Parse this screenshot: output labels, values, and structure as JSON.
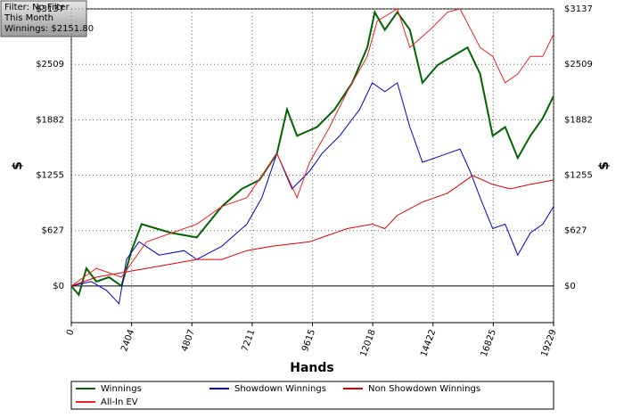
{
  "chart_data": {
    "type": "line",
    "info": [
      "Filter: No Filter",
      "This Month",
      "Winnings: $2151.80"
    ],
    "xlabel": "Hands",
    "ylabel": "$",
    "y2label": "$",
    "xlim": [
      0,
      19229
    ],
    "xticks": [
      0,
      2404,
      4807,
      7211,
      9615,
      12018,
      14422,
      16825,
      19229
    ],
    "ylim": [
      -415,
      3137
    ],
    "yticks": [
      {
        "value": 0,
        "label": "$0"
      },
      {
        "value": 627,
        "label": "$627"
      },
      {
        "value": 1255,
        "label": "$1255"
      },
      {
        "value": 1882,
        "label": "$1882"
      },
      {
        "value": 2509,
        "label": "$2509"
      },
      {
        "value": 3137,
        "label": "$3137"
      }
    ],
    "grid": true,
    "series": [
      {
        "name": "Winnings",
        "color": "#006400",
        "x": [
          0,
          300,
          600,
          1000,
          1500,
          2000,
          2400,
          2800,
          3400,
          4000,
          5000,
          6000,
          6800,
          7500,
          8200,
          8600,
          9000,
          9800,
          10500,
          11200,
          11800,
          12100,
          12500,
          13000,
          13500,
          14000,
          14600,
          15200,
          15800,
          16300,
          16800,
          17300,
          17800,
          18300,
          18800,
          19229
        ],
        "values": [
          0,
          -100,
          200,
          50,
          100,
          0,
          400,
          700,
          650,
          600,
          550,
          900,
          1100,
          1200,
          1500,
          2000,
          1700,
          1800,
          2000,
          2300,
          2700,
          3100,
          2900,
          3100,
          2900,
          2300,
          2500,
          2600,
          2700,
          2400,
          1700,
          1800,
          1450,
          1700,
          1900,
          2150
        ]
      },
      {
        "name": "Showdown Winnings",
        "color": "#0000cc",
        "x": [
          0,
          800,
          1400,
          1900,
          2200,
          2700,
          3500,
          4500,
          5000,
          6000,
          7000,
          7600,
          8200,
          8800,
          9500,
          10000,
          10700,
          11500,
          12000,
          12500,
          13000,
          13500,
          14000,
          15000,
          15500,
          15900,
          16300,
          16800,
          17300,
          17800,
          18300,
          18800,
          19229
        ],
        "values": [
          0,
          50,
          -50,
          -200,
          300,
          500,
          350,
          400,
          300,
          450,
          700,
          1000,
          1500,
          1100,
          1300,
          1500,
          1700,
          2000,
          2300,
          2200,
          2300,
          1800,
          1400,
          1500,
          1550,
          1300,
          1000,
          650,
          700,
          350,
          600,
          700,
          900
        ]
      },
      {
        "name": "Non Showdown Winnings",
        "color": "#dd0000",
        "x": [
          0,
          1000,
          3000,
          5000,
          6000,
          7000,
          8000,
          9500,
          10000,
          11000,
          12000,
          12500,
          13000,
          14000,
          15000,
          16000,
          16800,
          17500,
          18300,
          19229
        ],
        "values": [
          0,
          100,
          200,
          300,
          300,
          400,
          450,
          500,
          550,
          650,
          700,
          650,
          800,
          950,
          1050,
          1250,
          1150,
          1100,
          1150,
          1200
        ]
      },
      {
        "name": "All-In EV",
        "color": "#ee2222",
        "x": [
          0,
          1000,
          2000,
          3000,
          4000,
          5000,
          6000,
          7000,
          8200,
          9000,
          9500,
          10300,
          11000,
          11800,
          12200,
          13000,
          13500,
          14300,
          15000,
          15500,
          16300,
          16800,
          17300,
          17800,
          18300,
          18800,
          19229
        ],
        "values": [
          0,
          200,
          100,
          500,
          600,
          700,
          900,
          1000,
          1500,
          1000,
          1400,
          1800,
          2200,
          2600,
          3000,
          3137,
          2700,
          2900,
          3100,
          3137,
          2700,
          2600,
          2300,
          2400,
          2600,
          2600,
          2850
        ]
      }
    ]
  }
}
